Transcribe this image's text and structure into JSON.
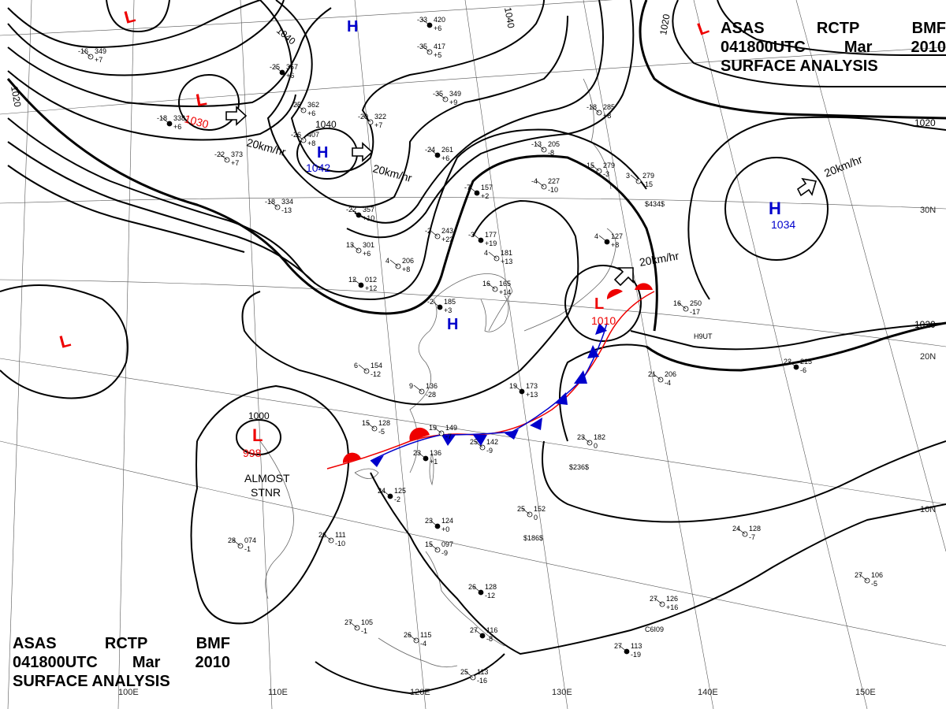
{
  "header": {
    "agency": "ASAS",
    "station": "RCTP",
    "office": "BMF",
    "datetime": "041800UTC",
    "month": "Mar",
    "year": "2010",
    "product": "SURFACE ANALYSIS"
  },
  "systems": {
    "low_top_left": {
      "symbol": "L",
      "pressure": ""
    },
    "low_mongolia": {
      "symbol": "L",
      "pressure": "1030"
    },
    "high_siberia": {
      "symbol": "H",
      "pressure": "1042"
    },
    "high_north": {
      "symbol": "H",
      "pressure": ""
    },
    "low_top_right": {
      "symbol": "L",
      "pressure": ""
    },
    "high_pacific": {
      "symbol": "H",
      "pressure": "1034"
    },
    "low_west": {
      "symbol": "L",
      "pressure": ""
    },
    "low_indochina": {
      "symbol": "L",
      "pressure": "998"
    },
    "high_china": {
      "symbol": "H",
      "pressure": ""
    },
    "low_japan": {
      "symbol": "L",
      "pressure": "1010"
    }
  },
  "annotations": {
    "almost": "ALMOST",
    "stnr": "STNR",
    "speed_mongolia": "20km/hr",
    "speed_siberia": "20km/hr",
    "speed_japan": "20km/hr",
    "speed_pacific": "20km/hr"
  },
  "isobars": {
    "iso_1040_a": "1040",
    "iso_1040_b": "1040",
    "iso_1040_c": "1040",
    "iso_1020_a": "1020",
    "iso_1020_b": "1020",
    "iso_1020_c": "1020",
    "iso_1020_d": "1020",
    "iso_1000": "1000"
  },
  "grid_labels": {
    "lat_30": "30N",
    "lat_20": "20N",
    "lat_10": "10N",
    "lon_110": "110E",
    "lon_120": "120E",
    "lon_130": "130E",
    "lon_140": "140E",
    "lon_150": "150E",
    "lon_100": "100E"
  },
  "stations": [
    {
      "t": "-33",
      "p": "420",
      "tend": "+6"
    },
    {
      "t": "-35",
      "p": "417",
      "tend": "+5"
    },
    {
      "t": "-16",
      "p": "349",
      "tend": "+7"
    },
    {
      "t": "-25",
      "p": "357",
      "tend": "+6"
    },
    {
      "t": "-25",
      "p": "362",
      "tend": "+6"
    },
    {
      "t": "-35",
      "p": "349",
      "tend": "+9"
    },
    {
      "t": "-18",
      "p": "338",
      "tend": "+6"
    },
    {
      "t": "-26",
      "p": "407",
      "tend": "+8"
    },
    {
      "t": "-20",
      "p": "322",
      "tend": "+7"
    },
    {
      "t": "-24",
      "p": "261",
      "tend": "+6"
    },
    {
      "t": "-22",
      "p": "373",
      "tend": "+7"
    },
    {
      "t": "-18",
      "p": "334",
      "tend": "-13"
    },
    {
      "t": "-22",
      "p": "357",
      "tend": "+10"
    },
    {
      "t": "-13",
      "p": "205",
      "tend": "-8"
    },
    {
      "t": "-18",
      "p": "285",
      "tend": "+8"
    },
    {
      "t": "-7",
      "p": "157",
      "tend": "+2"
    },
    {
      "t": "-4",
      "p": "227",
      "tend": "-10"
    },
    {
      "t": "-2",
      "p": "243",
      "tend": "+23"
    },
    {
      "t": "-3",
      "p": "177",
      "tend": "+19"
    },
    {
      "t": "13",
      "p": "301",
      "tend": "+6"
    },
    {
      "t": "4",
      "p": "206",
      "tend": "+8"
    },
    {
      "t": "12",
      "p": "012",
      "tend": "+12"
    },
    {
      "t": "4",
      "p": "181",
      "tend": "+13"
    },
    {
      "t": "16",
      "p": "165",
      "tend": "+14"
    },
    {
      "t": "-2",
      "p": "185",
      "tend": "+3"
    },
    {
      "t": "3",
      "p": "279",
      "tend": "-15"
    },
    {
      "t": "15",
      "p": "279",
      "tend": "-3"
    },
    {
      "t": "4",
      "p": "127",
      "tend": "+8"
    },
    {
      "t": "16",
      "p": "250",
      "tend": "-17"
    },
    {
      "t": "21",
      "p": "206",
      "tend": "-4"
    },
    {
      "t": "22",
      "p": "215",
      "tend": "-6"
    },
    {
      "t": "6",
      "p": "154",
      "tend": "-12"
    },
    {
      "t": "9",
      "p": "136",
      "tend": "-28"
    },
    {
      "t": "19",
      "p": "173",
      "tend": "+13"
    },
    {
      "t": "15",
      "p": "128",
      "tend": "-5"
    },
    {
      "t": "19",
      "p": "149",
      "tend": "-7"
    },
    {
      "t": "23",
      "p": "136",
      "tend": "+1"
    },
    {
      "t": "25",
      "p": "142",
      "tend": "-9"
    },
    {
      "t": "23",
      "p": "182",
      "tend": "0"
    },
    {
      "t": "24",
      "p": "125",
      "tend": "-2"
    },
    {
      "t": "28",
      "p": "074",
      "tend": "-1"
    },
    {
      "t": "26",
      "p": "111",
      "tend": "-10"
    },
    {
      "t": "23",
      "p": "124",
      "tend": "+0"
    },
    {
      "t": "15",
      "p": "097",
      "tend": "-9"
    },
    {
      "t": "25",
      "p": "152",
      "tend": "0"
    },
    {
      "t": "26",
      "p": "128",
      "tend": "-12"
    },
    {
      "t": "27",
      "p": "105",
      "tend": "-1"
    },
    {
      "t": "26",
      "p": "115",
      "tend": "-4"
    },
    {
      "t": "27",
      "p": "116",
      "tend": "-8"
    },
    {
      "t": "25",
      "p": "113",
      "tend": "-16"
    },
    {
      "t": "27",
      "p": "126",
      "tend": "+16"
    },
    {
      "t": "27",
      "p": "113",
      "tend": "-19"
    },
    {
      "t": "24",
      "p": "128",
      "tend": "-7"
    },
    {
      "t": "27",
      "p": "106",
      "tend": "-5"
    }
  ],
  "ship_codes": [
    "$434$",
    "H9UT",
    "$236$",
    "$186$",
    "C6I09"
  ]
}
